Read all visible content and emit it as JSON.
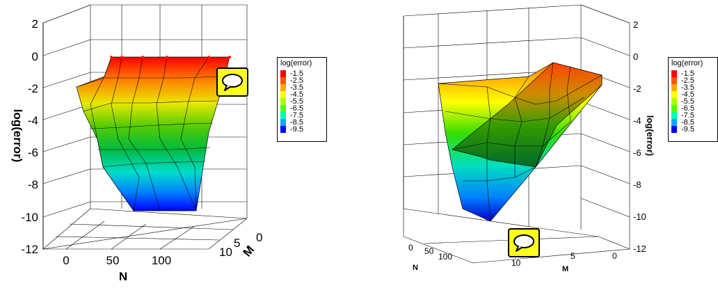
{
  "chart_data": [
    {
      "type": "surface",
      "title": "",
      "zlabel": "log(error)",
      "xlabel": "N",
      "ylabel": "M",
      "z_ticks": [
        "2",
        "0",
        "-2",
        "-4",
        "-6",
        "-8",
        "-10",
        "-12"
      ],
      "x_ticks": [
        "0",
        "50",
        "100"
      ],
      "y_ticks": [
        "0",
        "5",
        "10"
      ],
      "zlim": [
        -12,
        2
      ],
      "colormap": "rainbow"
    },
    {
      "type": "surface",
      "title": "",
      "zlabel": "log(error)",
      "xlabel": "N",
      "ylabel": "M",
      "z_ticks": [
        "2",
        "0",
        "-2",
        "-4",
        "-6",
        "-8",
        "-10",
        "-12"
      ],
      "x_ticks": [
        "0",
        "50",
        "100"
      ],
      "y_ticks": [
        "10",
        "5",
        "0"
      ],
      "zlim": [
        -12,
        2
      ],
      "colormap": "rainbow"
    }
  ],
  "legend": {
    "title": "log(error)",
    "levels": [
      "-1.5",
      "-2.5",
      "-3.5",
      "-4.5",
      "-5.5",
      "-6.5",
      "-7.5",
      "-8.5",
      "-9.5"
    ],
    "colors": [
      "#ff0000",
      "#ff5500",
      "#ffaa00",
      "#ffff00",
      "#aaff00",
      "#55ff00",
      "#00ffaa",
      "#00aaff",
      "#0000ff"
    ]
  },
  "icons": {
    "comment": "speech-bubble-icon"
  }
}
